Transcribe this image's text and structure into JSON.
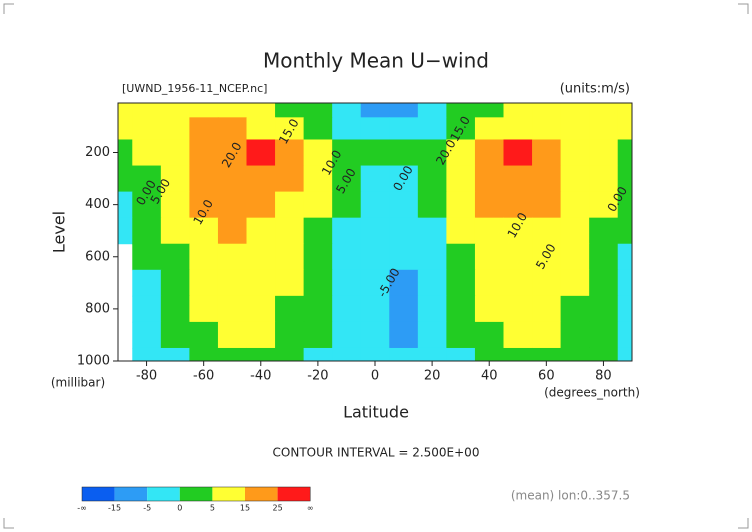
{
  "chart_data": {
    "type": "contour",
    "title": "Monthly Mean U−wind",
    "subtitle": "[UWND_1956-11_NCEP.nc]",
    "units_label": "(units:m/s)",
    "x_label": "Latitude",
    "x_units": "(degrees_north)",
    "y_label": "Level",
    "y_units": "(millibar)",
    "contour_interval_label": "CONTOUR INTERVAL = 2.500E+00",
    "footnote": "(mean) lon:0..357.5",
    "x": [
      -90,
      -80,
      -70,
      -60,
      -50,
      -40,
      -30,
      -20,
      -10,
      0,
      10,
      20,
      30,
      40,
      50,
      60,
      70,
      80,
      90
    ],
    "y": [
      30,
      100,
      200,
      300,
      400,
      500,
      600,
      700,
      800,
      900,
      1000
    ],
    "z": [
      [
        5,
        8,
        10,
        10,
        8,
        5,
        3,
        0,
        -5,
        -10,
        -10,
        -5,
        0,
        3,
        5,
        5,
        5,
        5,
        5
      ],
      [
        5,
        8,
        12,
        15,
        15,
        12,
        8,
        3,
        -2,
        -5,
        -5,
        -2,
        3,
        8,
        12,
        10,
        8,
        5,
        5
      ],
      [
        2,
        5,
        12,
        20,
        24,
        27,
        20,
        10,
        3,
        0,
        0,
        3,
        12,
        22,
        27,
        20,
        10,
        5,
        2
      ],
      [
        0,
        3,
        10,
        18,
        22,
        24,
        18,
        8,
        2,
        -2,
        -2,
        2,
        10,
        20,
        24,
        18,
        10,
        5,
        2
      ],
      [
        -2,
        2,
        8,
        15,
        18,
        18,
        14,
        6,
        0,
        -3,
        -3,
        0,
        8,
        16,
        18,
        15,
        10,
        5,
        1
      ],
      [
        -2,
        0,
        6,
        12,
        15,
        14,
        10,
        4,
        -1,
        -4,
        -4,
        -1,
        5,
        12,
        14,
        12,
        8,
        3,
        0
      ],
      [
        null,
        0,
        4,
        10,
        12,
        11,
        8,
        3,
        -2,
        -4,
        -5,
        -2,
        3,
        9,
        11,
        10,
        6,
        2,
        -1
      ],
      [
        null,
        -1,
        3,
        8,
        10,
        9,
        6,
        2,
        -2,
        -5,
        -6,
        -3,
        2,
        7,
        9,
        8,
        5,
        1,
        -1
      ],
      [
        null,
        -2,
        2,
        6,
        8,
        7,
        4,
        1,
        -3,
        -5,
        -6,
        -3,
        1,
        5,
        8,
        7,
        4,
        1,
        -1
      ],
      [
        null,
        -3,
        0,
        4,
        6,
        5,
        3,
        0,
        -3,
        -5,
        -6,
        -3,
        0,
        4,
        6,
        5,
        3,
        0,
        -1
      ],
      [
        null,
        -3,
        -1,
        2,
        3,
        3,
        1,
        -1,
        -3,
        -4,
        -5,
        -3,
        -1,
        2,
        4,
        3,
        2,
        0,
        -1
      ]
    ],
    "xlim": [
      -90,
      90
    ],
    "ylim": [
      1000,
      10
    ],
    "xticks": [
      -80,
      -60,
      -40,
      -20,
      0,
      20,
      40,
      60,
      80
    ],
    "yticks": [
      200,
      400,
      600,
      800,
      1000
    ],
    "contour_labels": [
      "15.0",
      "20.0",
      "10.0",
      "5.00",
      "0.00",
      "10.0",
      "5.00",
      "0.00",
      "-5.00",
      "15.0",
      "20.0",
      "10.0",
      "5.00",
      "0.00"
    ],
    "colorbar": {
      "levels": [
        -15,
        -5,
        0,
        5,
        15,
        25
      ],
      "colors": [
        "#0a5ef0",
        "#2d9cf5",
        "#33e6f5",
        "#22cc22",
        "#ffff33",
        "#ff9a1a",
        "#ff1a1a"
      ],
      "low_label": "-∞",
      "high_label": "∞"
    }
  }
}
